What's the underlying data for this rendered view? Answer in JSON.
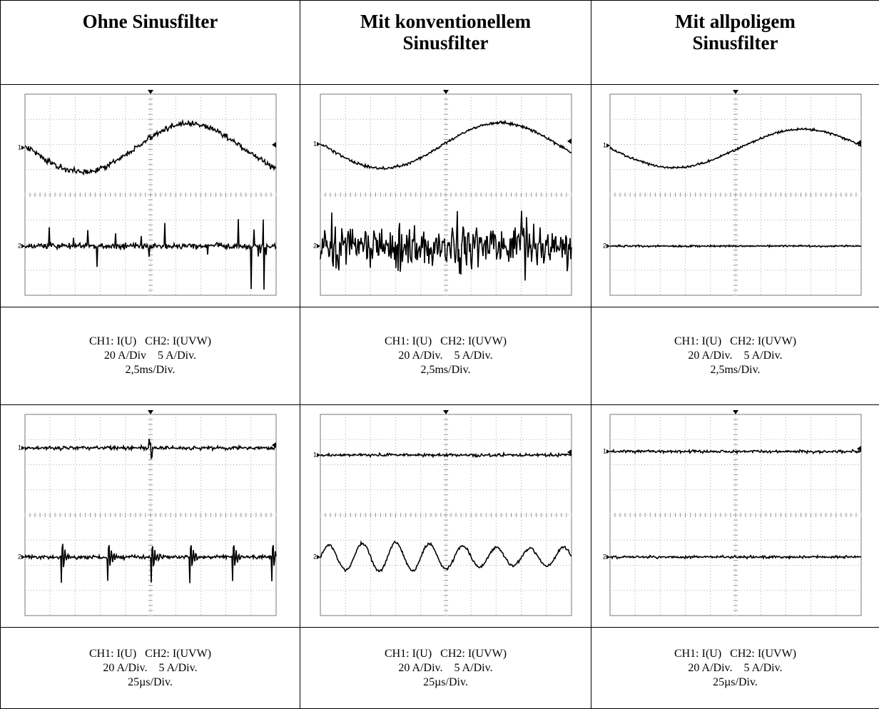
{
  "table": {
    "header": [
      [
        "Ohne Sinusfilter"
      ],
      [
        "Mit konventionellem",
        "Sinusfilter"
      ],
      [
        "Mit allpoligem",
        "Sinusfilter"
      ]
    ],
    "captions": [
      [
        [
          "CH1: I(U)   CH2: I(UVW)",
          "20 A/Div    5 A/Div.",
          "2,5ms/Div."
        ],
        [
          "CH1: I(U)   CH2: I(UVW)",
          "20 A/Div.    5 A/Div.",
          "2,5ms/Div."
        ],
        [
          "CH1: I(U)   CH2: I(UVW)",
          "20 A/Div.    5 A/Div.",
          "2,5ms/Div."
        ]
      ],
      [
        [
          "CH1: I(U)   CH2: I(UVW)",
          "20 A/Div.    5 A/Div.",
          "25µs/Div."
        ],
        [
          "CH1: I(U)   CH2: I(UVW)",
          "20 A/Div.    5 A/Div.",
          "25µs/Div."
        ],
        [
          "CH1: I(U)   CH2: I(UVW)",
          "20 A/Div.    5 A/Div.",
          "25µs/Div."
        ]
      ]
    ],
    "channel_markers": [
      "1",
      "2"
    ]
  }
}
